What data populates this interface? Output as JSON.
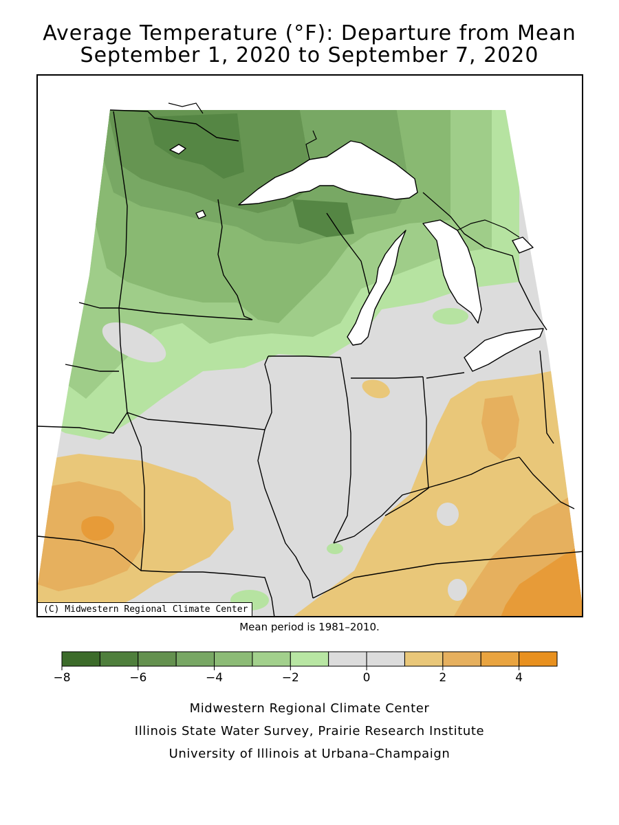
{
  "title": {
    "line1": "Average Temperature (°F): Departure from Mean",
    "line2": "September 1, 2020 to September 7, 2020"
  },
  "map": {
    "credit": "(C) Midwestern Regional Climate Center",
    "mean_period": "Mean period is 1981–2010.",
    "colors": {
      "water": "#ffffff",
      "neutral": "#dcdcdc",
      "minus_1": "#b6e3a1",
      "minus_2": "#9fcd89",
      "minus_3": "#89b972",
      "minus_4": "#78a864",
      "minus_5": "#669552",
      "minus_6": "#558644",
      "plus_1": "#e9c779",
      "plus_2": "#e6b05e",
      "plus_3": "#e79b38"
    }
  },
  "legend": {
    "bins": [
      {
        "from": -8,
        "to": -7,
        "color": "#3c6b2a"
      },
      {
        "from": -7,
        "to": -6,
        "color": "#4f7f3c"
      },
      {
        "from": -6,
        "to": -5,
        "color": "#64914f"
      },
      {
        "from": -5,
        "to": -4,
        "color": "#78a764"
      },
      {
        "from": -4,
        "to": -3,
        "color": "#8cbb76"
      },
      {
        "from": -3,
        "to": -2,
        "color": "#a2d08c"
      },
      {
        "from": -2,
        "to": -1,
        "color": "#b8e6a3"
      },
      {
        "from": -1,
        "to": 0,
        "color": "#dcdcdc"
      },
      {
        "from": 0,
        "to": 1,
        "color": "#dcdcdc"
      },
      {
        "from": 1,
        "to": 2,
        "color": "#e9c779"
      },
      {
        "from": 2,
        "to": 3,
        "color": "#e6b05e"
      },
      {
        "from": 3,
        "to": 4,
        "color": "#e9a440"
      },
      {
        "from": 4,
        "to": 5,
        "color": "#e8901e"
      }
    ],
    "tick_labels": [
      "−8",
      "−6",
      "−4",
      "−2",
      "0",
      "2",
      "4"
    ],
    "tick_values": [
      -8,
      -6,
      -4,
      -2,
      0,
      2,
      4
    ],
    "range": [
      -8,
      5
    ]
  },
  "footer": {
    "line1": "Midwestern Regional Climate Center",
    "line2": "Illinois State Water Survey, Prairie Research Institute",
    "line3": "University of Illinois at Urbana–Champaign"
  }
}
